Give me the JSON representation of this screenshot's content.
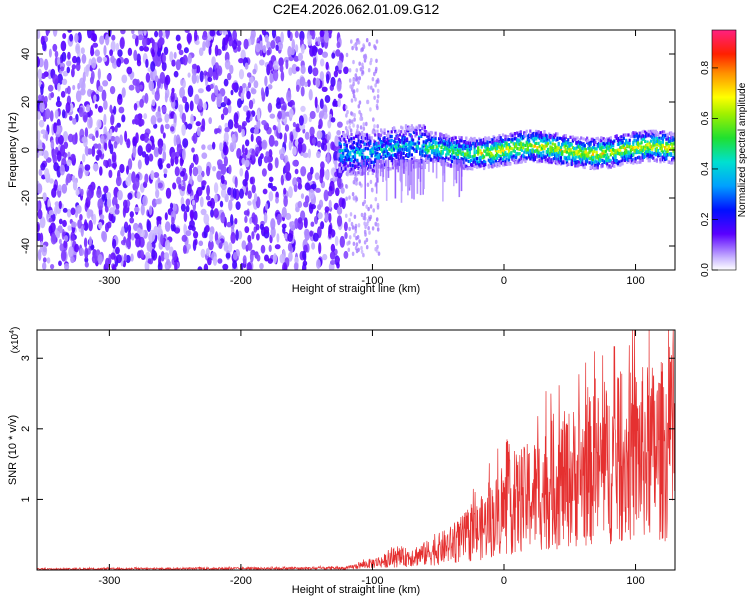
{
  "title": "C2E4.2026.062.01.09.G12",
  "colors": {
    "snr_line": "#e53030",
    "axis": "#000000",
    "background": "#ffffff"
  },
  "chart_data": [
    {
      "type": "heatmap",
      "xlabel": "Height of straight line (km)",
      "ylabel": "Frequency (Hz)",
      "xlim": [
        -355,
        130
      ],
      "ylim": [
        -50,
        50
      ],
      "xticks": [
        -300,
        -200,
        -100,
        0,
        100
      ],
      "yticks": [
        -40,
        -20,
        0,
        20,
        40
      ],
      "colorbar": {
        "label": "Normalized spectral amplitude",
        "range": [
          0.0,
          0.95
        ],
        "ticks": [
          0.0,
          0.2,
          0.4,
          0.6,
          0.8
        ]
      },
      "description_values": {
        "noise_region_x": [
          -355,
          -120
        ],
        "signal_band_center_hz": 0,
        "signal_band_halfwidth_hz": 4
      }
    },
    {
      "type": "line",
      "xlabel": "Height of straight line (km)",
      "ylabel": "SNR (10 * v/v)",
      "y_multiplier": "(x10",
      "y_multiplier_exp": "4",
      "xlim": [
        -355,
        130
      ],
      "ylim": [
        0,
        3.4
      ],
      "xticks": [
        -300,
        -200,
        -100,
        0,
        100
      ],
      "yticks": [
        1,
        2,
        3
      ],
      "envelope": {
        "x": [
          -355,
          -120,
          -100,
          -80,
          -60,
          -40,
          -20,
          0,
          20,
          40,
          60,
          80,
          100,
          120,
          130
        ],
        "y": [
          0.02,
          0.04,
          0.15,
          0.25,
          0.35,
          0.55,
          0.85,
          1.3,
          1.6,
          1.9,
          2.1,
          2.3,
          2.5,
          2.6,
          2.6
        ]
      }
    }
  ]
}
